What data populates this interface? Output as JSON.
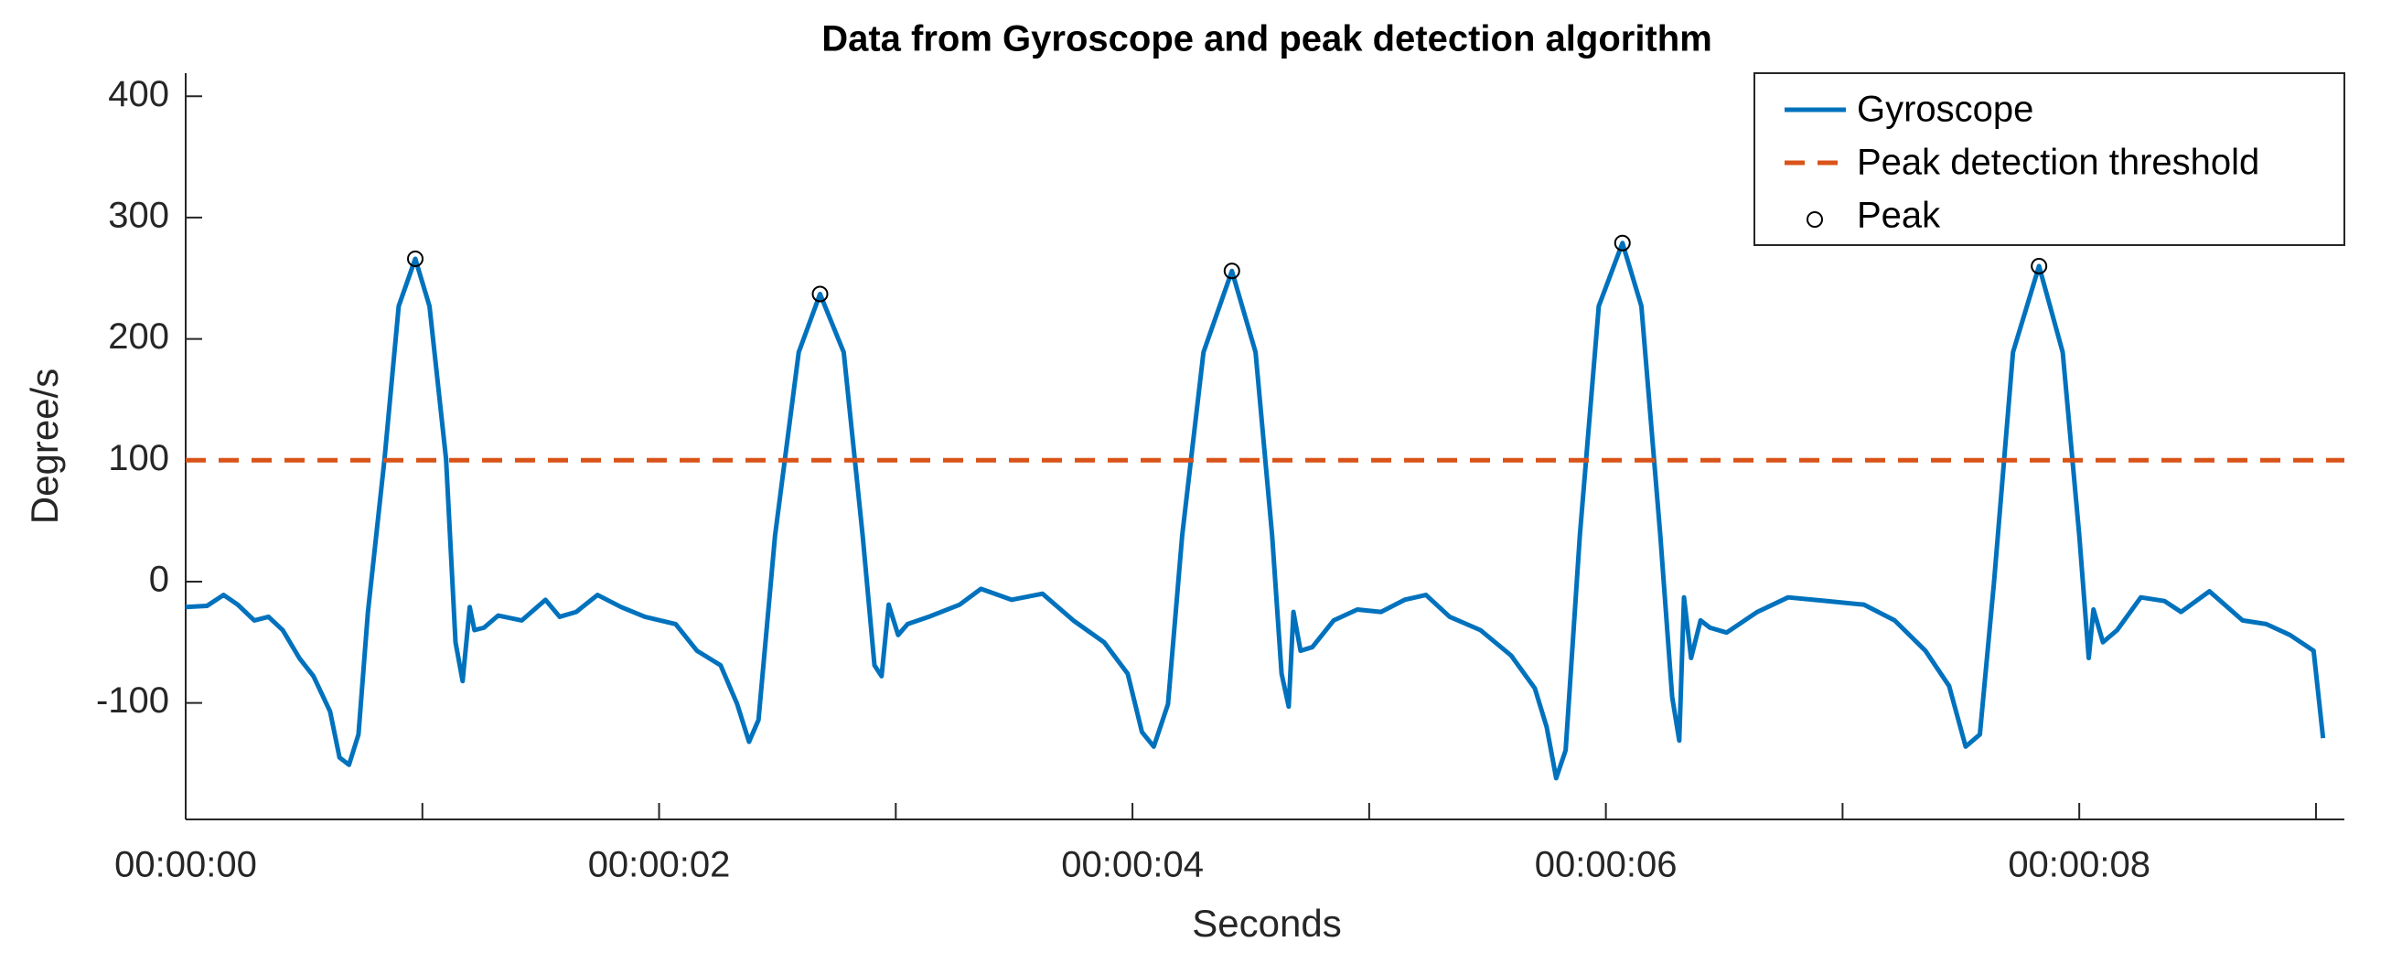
{
  "chart_data": {
    "type": "line",
    "title": "Data from Gyroscope and peak detection algorithm",
    "xlabel": "Seconds",
    "ylabel": "Degree/s",
    "xlim": [
      0,
      9.12
    ],
    "ylim": [
      -196,
      419
    ],
    "xticks": [
      {
        "value": 0,
        "label": "00:00:00"
      },
      {
        "value": 2,
        "label": "00:00:02"
      },
      {
        "value": 4,
        "label": "00:00:04"
      },
      {
        "value": 6,
        "label": "00:00:06"
      },
      {
        "value": 8,
        "label": "00:00:08"
      }
    ],
    "xminorticks": [
      1,
      3,
      5,
      7,
      9
    ],
    "yticks": [
      -100,
      0,
      100,
      200,
      300,
      400
    ],
    "legend": "northeast",
    "series": [
      {
        "name": "Gyroscope",
        "color": "#0072BD",
        "style": "solid",
        "x": [
          0,
          0.09,
          0.16,
          0.22,
          0.29,
          0.35,
          0.41,
          0.48,
          0.54,
          0.61,
          0.65,
          0.69,
          0.73,
          0.77,
          0.84,
          0.9,
          0.97,
          1.03,
          1.1,
          1.14,
          1.17,
          1.2,
          1.22,
          1.26,
          1.32,
          1.42,
          1.52,
          1.58,
          1.65,
          1.74,
          1.84,
          1.94,
          2.07,
          2.16,
          2.26,
          2.33,
          2.38,
          2.42,
          2.49,
          2.59,
          2.68,
          2.78,
          2.86,
          2.91,
          2.94,
          2.97,
          3.01,
          3.05,
          3.14,
          3.27,
          3.36,
          3.49,
          3.62,
          3.75,
          3.88,
          3.98,
          4.04,
          4.09,
          4.15,
          4.21,
          4.3,
          4.42,
          4.52,
          4.59,
          4.63,
          4.66,
          4.68,
          4.71,
          4.76,
          4.85,
          4.95,
          5.05,
          5.15,
          5.24,
          5.34,
          5.47,
          5.6,
          5.7,
          5.75,
          5.79,
          5.83,
          5.89,
          5.97,
          6.07,
          6.15,
          6.23,
          6.28,
          6.31,
          6.33,
          6.36,
          6.4,
          6.44,
          6.51,
          6.64,
          6.77,
          6.93,
          7.09,
          7.22,
          7.35,
          7.45,
          7.52,
          7.58,
          7.64,
          7.72,
          7.83,
          7.93,
          8.0,
          8.04,
          8.06,
          8.1,
          8.16,
          8.26,
          8.36,
          8.43,
          8.55,
          8.69,
          8.79,
          8.89,
          8.99,
          9.03
        ],
        "values": [
          -21,
          -20,
          -11,
          -19,
          -32,
          -29,
          -40,
          -63,
          -78,
          -107,
          -145,
          -151,
          -126,
          -25,
          101,
          227,
          266,
          227,
          101,
          -50,
          -82,
          -21,
          -40,
          -38,
          -28,
          -32,
          -15,
          -29,
          -25,
          -11,
          -21,
          -29,
          -35,
          -57,
          -69,
          -101,
          -132,
          -114,
          38,
          189,
          237,
          189,
          38,
          -69,
          -78,
          -19,
          -44,
          -35,
          -29,
          -19,
          -6,
          -15,
          -10,
          -32,
          -50,
          -76,
          -124,
          -136,
          -101,
          38,
          189,
          256,
          189,
          38,
          -76,
          -103,
          -25,
          -57,
          -54,
          -32,
          -23,
          -25,
          -15,
          -11,
          -29,
          -40,
          -61,
          -88,
          -120,
          -162,
          -139,
          38,
          227,
          279,
          227,
          38,
          -95,
          -131,
          -13,
          -63,
          -32,
          -38,
          -42,
          -25,
          -13,
          -16,
          -19,
          -32,
          -57,
          -86,
          -136,
          -126,
          0,
          189,
          260,
          189,
          38,
          -63,
          -23,
          -50,
          -40,
          -13,
          -16,
          -25,
          -8,
          -32,
          -35,
          -44,
          -57,
          -129
        ]
      },
      {
        "name": "Peak detection threshold",
        "color": "#D95319",
        "style": "dashed",
        "x": [
          0,
          9.12
        ],
        "values": [
          100,
          100
        ]
      },
      {
        "name": "Peak",
        "color": "#000000",
        "style": "marker",
        "x": [
          0.97,
          2.68,
          4.42,
          6.07,
          7.83
        ],
        "values": [
          266,
          237,
          256,
          279,
          260
        ]
      }
    ]
  }
}
